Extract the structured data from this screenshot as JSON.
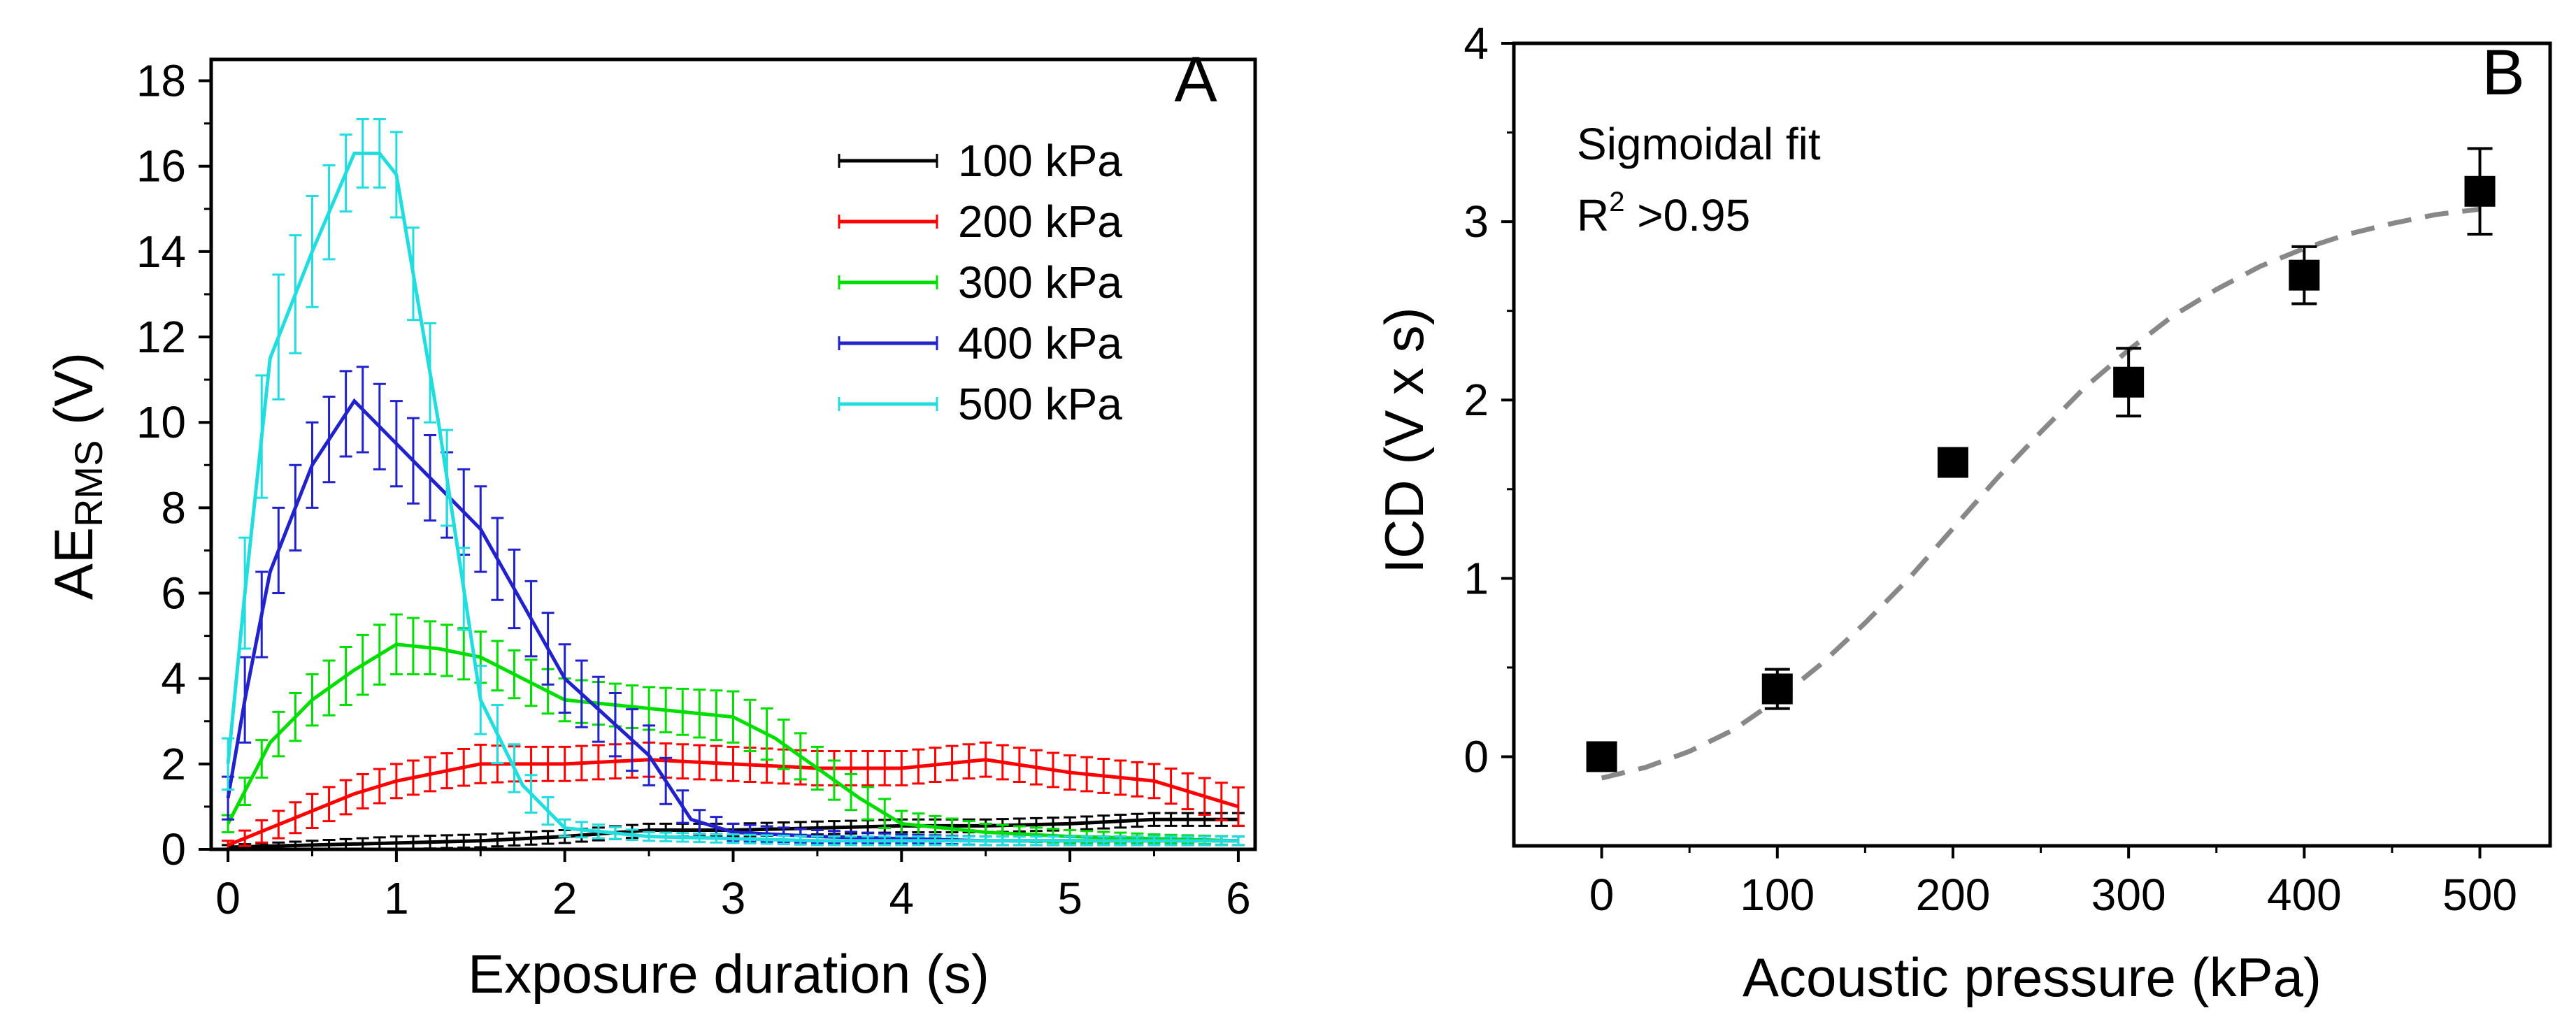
{
  "panels": {
    "a_letter": "A",
    "b_letter": "B",
    "b_annotation_line1": "Sigmoidal fit",
    "b_annotation_R": "R",
    "b_annotation_sup": "2",
    "b_annotation_rest": " >0.95"
  },
  "chart_data": [
    {
      "type": "line",
      "panel": "A",
      "title": "",
      "xlabel": "Exposure duration (s)",
      "ylabel_main": "AE",
      "ylabel_sub": "RMS",
      "ylabel_suffix": " (V)",
      "xlim": [
        -0.1,
        6.1
      ],
      "ylim": [
        0,
        18.5
      ],
      "xticks": [
        0,
        1,
        2,
        3,
        4,
        5,
        6
      ],
      "yticks": [
        0,
        2,
        4,
        6,
        8,
        10,
        12,
        14,
        16,
        18
      ],
      "grid": false,
      "legend_position": "top-right",
      "series": [
        {
          "name": "100 kPa",
          "color": "#000000",
          "x": [
            0,
            0.5,
            1,
            1.5,
            2,
            2.5,
            3,
            3.5,
            4,
            4.5,
            5,
            5.5,
            6
          ],
          "y": [
            0.05,
            0.1,
            0.15,
            0.2,
            0.3,
            0.45,
            0.45,
            0.5,
            0.55,
            0.55,
            0.6,
            0.7,
            0.7
          ],
          "err": [
            0.05,
            0.1,
            0.15,
            0.15,
            0.15,
            0.15,
            0.15,
            0.15,
            0.15,
            0.15,
            0.15,
            0.15,
            0.15
          ]
        },
        {
          "name": "200 kPa",
          "color": "#ff0000",
          "x": [
            0,
            0.25,
            0.5,
            0.75,
            1,
            1.25,
            1.5,
            1.75,
            2,
            2.5,
            3,
            3.5,
            4,
            4.5,
            5,
            5.5,
            6
          ],
          "y": [
            0.1,
            0.5,
            0.9,
            1.3,
            1.6,
            1.8,
            2.0,
            2.0,
            2.0,
            2.1,
            2.0,
            1.9,
            1.9,
            2.1,
            1.8,
            1.6,
            1.0
          ],
          "err": [
            0.1,
            0.3,
            0.4,
            0.4,
            0.4,
            0.4,
            0.45,
            0.4,
            0.4,
            0.4,
            0.4,
            0.4,
            0.4,
            0.4,
            0.4,
            0.4,
            0.45
          ]
        },
        {
          "name": "300 kPa",
          "color": "#00dd00",
          "x": [
            0,
            0.25,
            0.5,
            0.75,
            1,
            1.25,
            1.5,
            2,
            2.5,
            3,
            3.25,
            3.5,
            3.75,
            4,
            4.5,
            5,
            5.5,
            6
          ],
          "y": [
            0.6,
            2.5,
            3.5,
            4.2,
            4.8,
            4.7,
            4.5,
            3.5,
            3.3,
            3.1,
            2.6,
            1.9,
            1.2,
            0.6,
            0.4,
            0.3,
            0.25,
            0.2
          ],
          "err": [
            0.2,
            0.5,
            0.6,
            0.7,
            0.7,
            0.6,
            0.6,
            0.5,
            0.5,
            0.6,
            0.6,
            0.5,
            0.4,
            0.3,
            0.2,
            0.15,
            0.1,
            0.1
          ]
        },
        {
          "name": "400 kPa",
          "color": "#2222cc",
          "x": [
            0,
            0.1,
            0.25,
            0.5,
            0.75,
            1,
            1.25,
            1.5,
            2,
            2.5,
            2.75,
            3,
            3.5,
            4,
            4.5,
            5,
            5.5,
            6
          ],
          "y": [
            1.2,
            3.5,
            6.5,
            9.0,
            10.5,
            9.5,
            8.5,
            7.5,
            4.0,
            2.2,
            0.7,
            0.4,
            0.3,
            0.25,
            0.2,
            0.2,
            0.2,
            0.2
          ],
          "err": [
            0.5,
            1.0,
            1.0,
            1.0,
            1.0,
            1.0,
            1.0,
            1.0,
            0.8,
            0.7,
            0.3,
            0.2,
            0.15,
            0.1,
            0.1,
            0.1,
            0.1,
            0.1
          ]
        },
        {
          "name": "500 kPa",
          "color": "#22dddd",
          "x": [
            0,
            0.1,
            0.25,
            0.5,
            0.75,
            0.9,
            1,
            1.25,
            1.5,
            1.75,
            2,
            2.5,
            3,
            3.5,
            4,
            4.5,
            5,
            5.5,
            6
          ],
          "y": [
            2.0,
            6.0,
            11.5,
            14.0,
            16.3,
            16.3,
            15.8,
            10.0,
            3.5,
            1.5,
            0.5,
            0.3,
            0.25,
            0.2,
            0.2,
            0.2,
            0.2,
            0.2,
            0.2
          ],
          "err": [
            0.6,
            1.3,
            1.5,
            1.3,
            0.8,
            0.8,
            1.0,
            1.2,
            0.8,
            0.5,
            0.2,
            0.1,
            0.1,
            0.1,
            0.1,
            0.1,
            0.1,
            0.1,
            0.1
          ]
        }
      ]
    },
    {
      "type": "scatter",
      "panel": "B",
      "title": "",
      "xlabel": "Acoustic pressure (kPa)",
      "ylabel": "ICD (V x s)",
      "xlim": [
        -50,
        540
      ],
      "ylim": [
        -0.5,
        4
      ],
      "xticks": [
        0,
        100,
        200,
        300,
        400,
        500
      ],
      "yticks": [
        0,
        1,
        2,
        3,
        4
      ],
      "grid": false,
      "points": {
        "x": [
          0,
          100,
          200,
          300,
          400,
          500
        ],
        "y": [
          0,
          0.38,
          1.65,
          2.1,
          2.7,
          3.17
        ],
        "err": [
          0.03,
          0.11,
          0.04,
          0.19,
          0.16,
          0.24
        ]
      },
      "fit": {
        "x": [
          0,
          25,
          50,
          75,
          100,
          125,
          150,
          175,
          200,
          225,
          250,
          275,
          300,
          325,
          350,
          375,
          400,
          425,
          450,
          475,
          500
        ],
        "y": [
          -0.12,
          -0.06,
          0.03,
          0.15,
          0.32,
          0.52,
          0.75,
          1.0,
          1.28,
          1.56,
          1.82,
          2.07,
          2.28,
          2.47,
          2.62,
          2.75,
          2.85,
          2.93,
          2.99,
          3.04,
          3.07
        ],
        "color": "#888888"
      }
    }
  ]
}
